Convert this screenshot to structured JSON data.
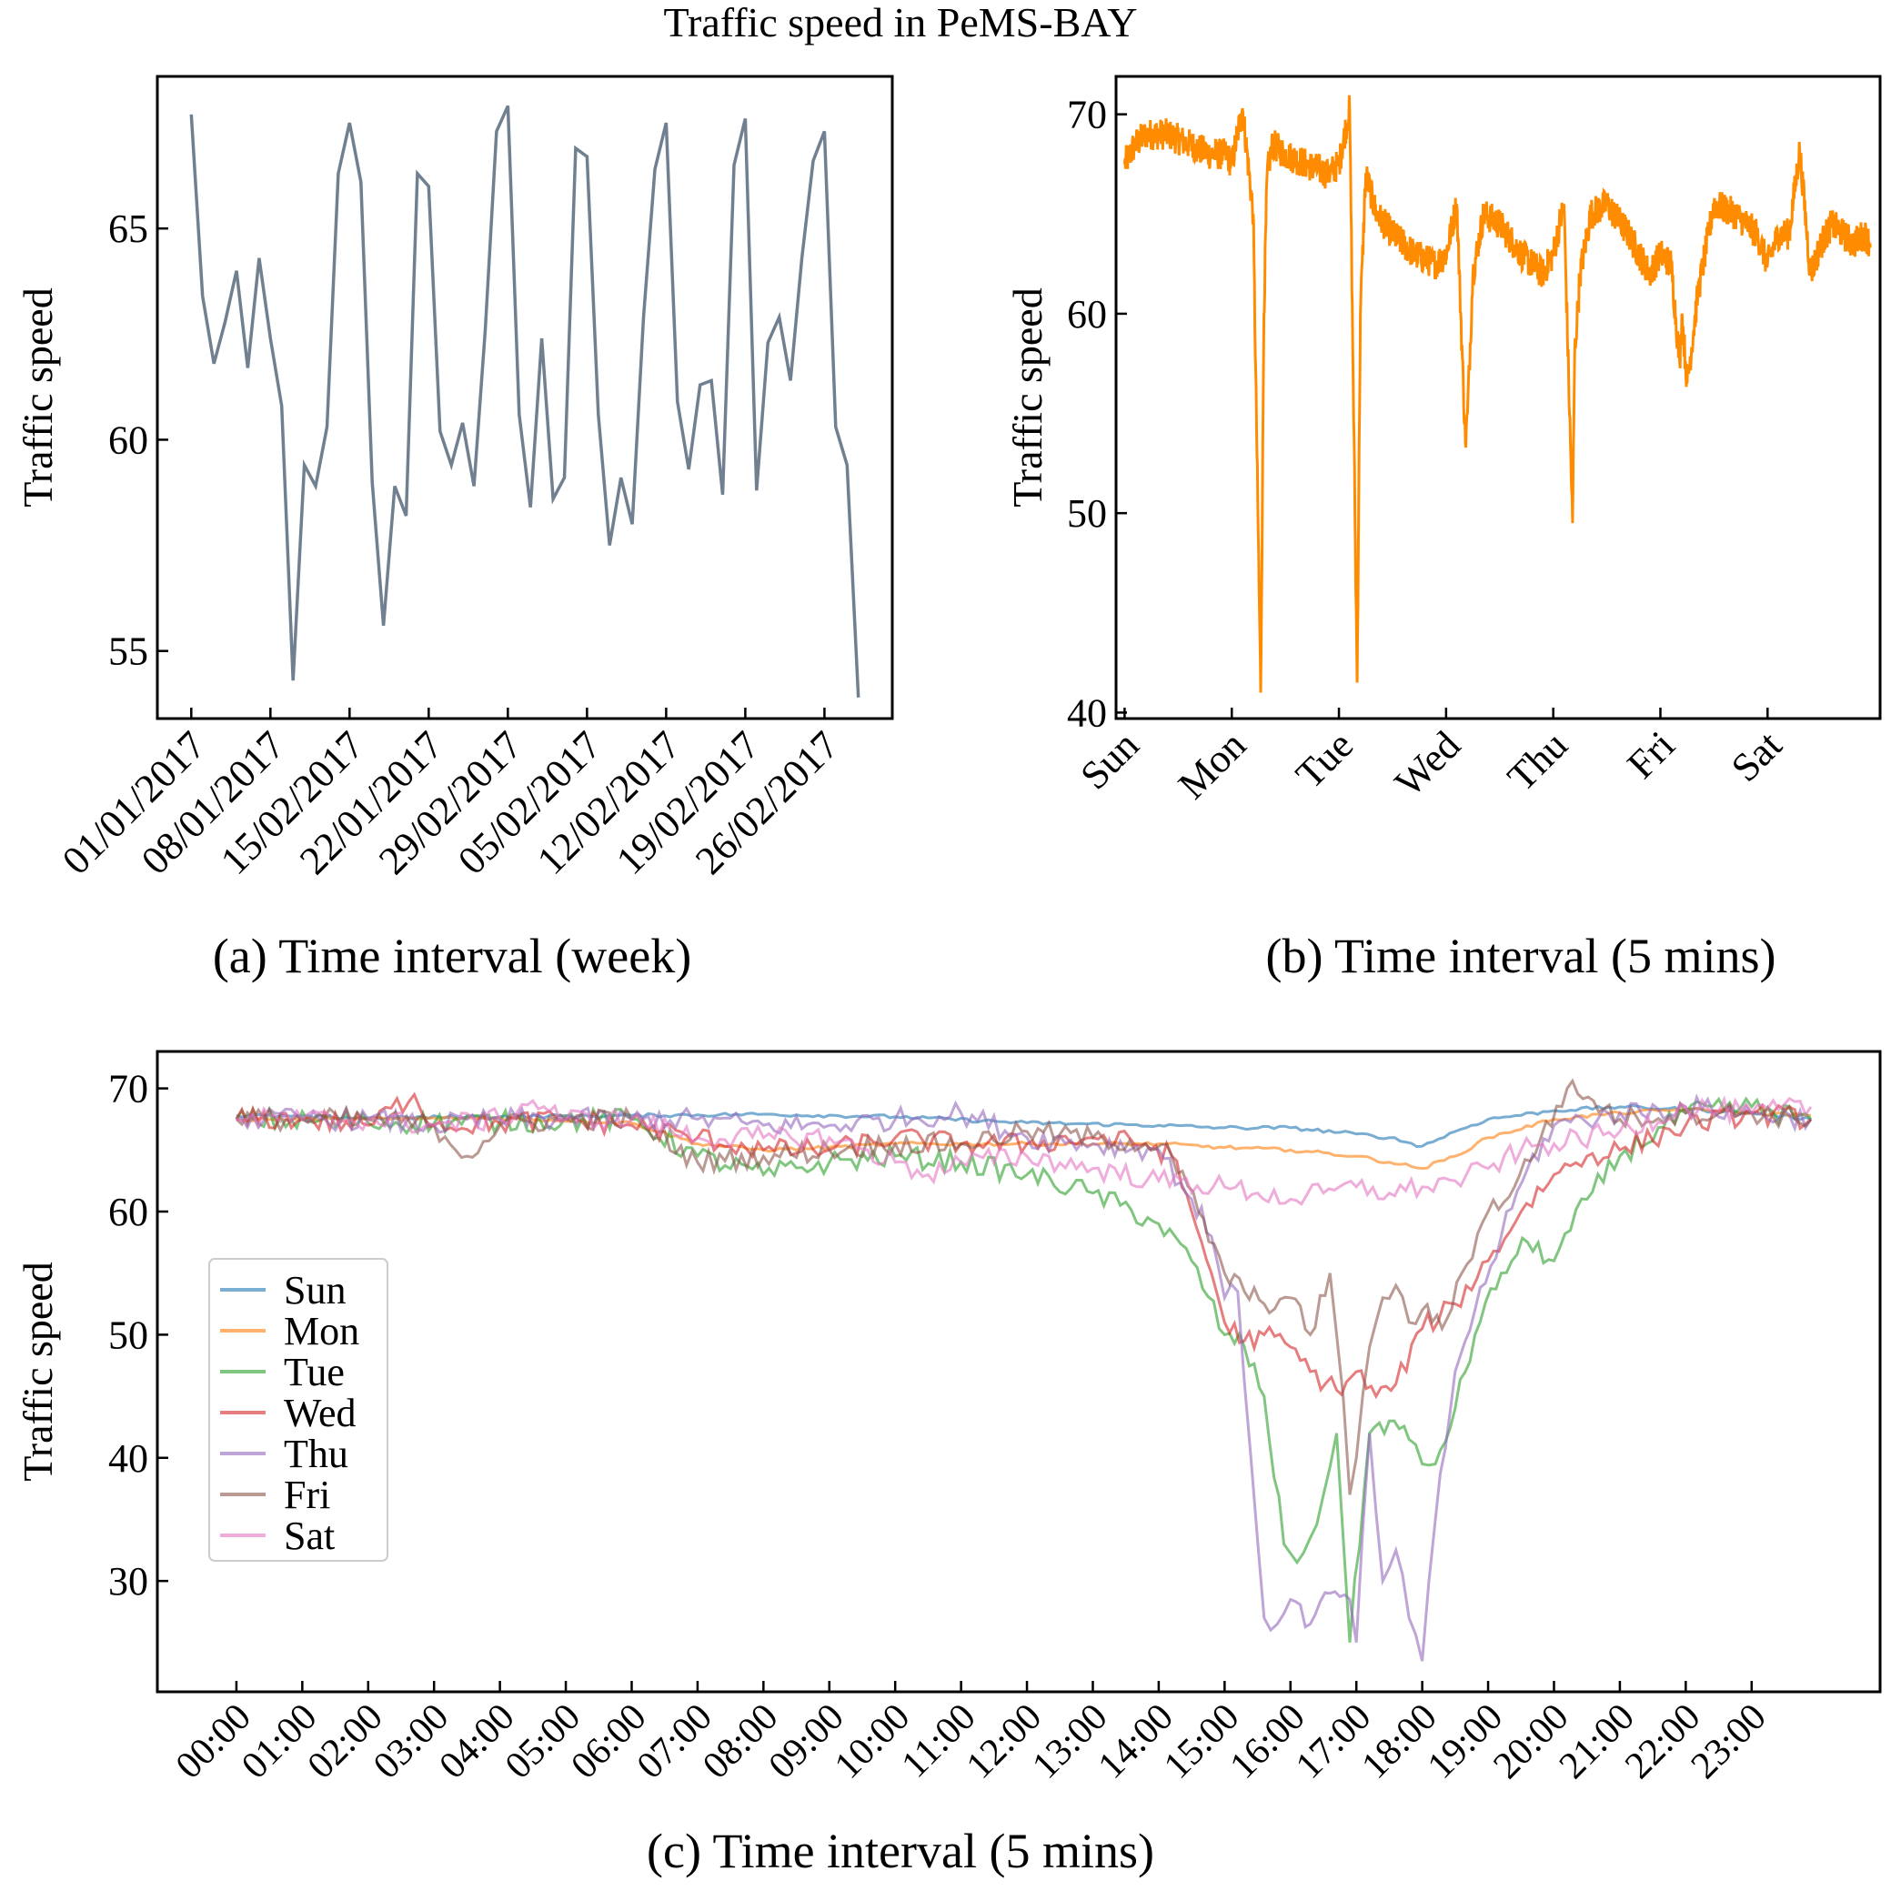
{
  "figure_title": "Traffic speed in PeMS-BAY",
  "chart_data": [
    {
      "id": "a",
      "type": "line",
      "title": "",
      "xlabel": "(a) Time interval (week)",
      "ylabel": "Traffic speed",
      "ylim": [
        53.4,
        68.6
      ],
      "yticks": [
        55,
        60,
        65
      ],
      "color": "#708090",
      "xtick_labels": [
        "01/01/2017",
        "08/01/2017",
        "15/02/2017",
        "22/01/2017",
        "29/02/2017",
        "05/02/2017",
        "12/02/2017",
        "19/02/2017",
        "26/02/2017"
      ],
      "xtick_positions": [
        0,
        7,
        14,
        21,
        28,
        35,
        42,
        49,
        56
      ],
      "xlim": [
        -3,
        62
      ],
      "x": [
        0,
        1,
        2,
        3,
        4,
        5,
        6,
        7,
        8,
        9,
        10,
        11,
        12,
        13,
        14,
        15,
        16,
        17,
        18,
        19,
        20,
        21,
        22,
        23,
        24,
        25,
        26,
        27,
        28,
        29,
        30,
        31,
        32,
        33,
        34,
        35,
        36,
        37,
        38,
        39,
        40,
        41,
        42,
        43,
        44,
        45,
        46,
        47,
        48,
        49,
        50,
        51,
        52,
        53,
        54,
        55,
        56,
        57,
        58,
        59
      ],
      "values": [
        67.7,
        63.4,
        61.8,
        62.8,
        64.0,
        61.7,
        64.3,
        62.4,
        60.8,
        54.3,
        59.4,
        58.9,
        60.3,
        66.3,
        67.5,
        66.1,
        59.0,
        55.6,
        58.9,
        58.2,
        66.3,
        66.0,
        60.2,
        59.4,
        60.4,
        58.9,
        62.6,
        67.3,
        67.9,
        60.6,
        58.4,
        62.4,
        58.6,
        59.1,
        66.9,
        66.7,
        60.6,
        57.5,
        59.1,
        58.0,
        62.9,
        66.4,
        67.5,
        60.9,
        59.3,
        61.3,
        61.4,
        58.7,
        66.5,
        67.6,
        58.8,
        62.3,
        62.9,
        61.4,
        64.3,
        66.6,
        67.3,
        60.3,
        59.4,
        53.9
      ]
    },
    {
      "id": "b",
      "type": "line",
      "title": "",
      "xlabel": "(b) Time interval (5 mins)",
      "ylabel": "Traffic speed",
      "ylim": [
        39.7,
        71.9
      ],
      "yticks": [
        40,
        50,
        60,
        70
      ],
      "color": "#ff8c00",
      "xtick_labels": [
        "Sun",
        "Mon",
        "Tue",
        "Wed",
        "Thu",
        "Fri",
        "Sat"
      ],
      "xtick_positions": [
        0,
        1,
        2,
        3,
        4,
        5,
        6
      ],
      "xlim": [
        -0.08,
        7.05
      ],
      "day_profiles": [
        {
          "x": [
            0,
            0.1,
            0.2,
            0.4,
            0.6,
            0.8,
            0.95,
            1.0,
            1.1,
            1.2,
            1.27,
            1.3,
            1.33,
            1.38,
            1.5,
            1.7,
            1.9,
            2.0
          ],
          "values": [
            67.5,
            68.5,
            69.0,
            69.0,
            68.5,
            68.0,
            68.0,
            67.5,
            70.3,
            65.0,
            41.0,
            60.0,
            67.0,
            68.5,
            68.0,
            67.5,
            67.0,
            67.5
          ]
        },
        {
          "x": [
            2.0,
            2.1,
            2.17,
            2.2,
            2.25,
            2.35,
            2.5,
            2.7,
            2.9,
            3.0
          ],
          "values": [
            67.5,
            70.3,
            41.5,
            60.0,
            67.0,
            65.0,
            64.0,
            63.0,
            62.5,
            63.0
          ]
        },
        {
          "x": [
            3.0,
            3.1,
            3.18,
            3.2,
            3.25,
            3.35,
            3.5,
            3.7,
            3.9,
            4.0
          ],
          "values": [
            63.0,
            65.5,
            53.5,
            55.0,
            62.0,
            65.0,
            64.5,
            63.0,
            62.0,
            63.0
          ]
        },
        {
          "x": [
            4.0,
            4.1,
            4.18,
            4.2,
            4.25,
            4.35,
            4.5,
            4.7,
            4.9,
            5.0
          ],
          "values": [
            63.0,
            65.5,
            49.5,
            58.0,
            62.0,
            65.0,
            65.5,
            64.0,
            62.0,
            63.0
          ]
        },
        {
          "x": [
            5.0,
            5.1,
            5.18,
            5.2,
            5.25,
            5.35,
            5.5,
            5.7,
            5.9,
            6.0
          ],
          "values": [
            63.0,
            62.5,
            57.5,
            60.0,
            56.5,
            61.0,
            65.5,
            65.0,
            64.0,
            62.5
          ]
        },
        {
          "x": [
            6.0,
            6.1,
            6.2,
            6.3,
            6.4,
            6.5,
            6.6,
            6.7,
            6.8,
            6.9,
            6.96
          ],
          "values": [
            62.5,
            64.0,
            64.0,
            68.2,
            62.0,
            63.5,
            64.5,
            64.0,
            63.5,
            64.0,
            63.5
          ]
        }
      ]
    },
    {
      "id": "c",
      "type": "line",
      "title": "",
      "xlabel": "(c) Time interval (5 mins)",
      "ylabel": "Traffic speed",
      "ylim": [
        21,
        73
      ],
      "yticks": [
        30,
        40,
        50,
        60,
        70
      ],
      "xtick_labels": [
        "00:00",
        "01:00",
        "02:00",
        "03:00",
        "04:00",
        "05:00",
        "06:00",
        "07:00",
        "08:00",
        "09:00",
        "10:00",
        "11:00",
        "12:00",
        "13:00",
        "14:00",
        "15:00",
        "16:00",
        "17:00",
        "18:00",
        "19:00",
        "20:00",
        "21:00",
        "22:00",
        "23:00"
      ],
      "xlim": [
        -1.2,
        24.95
      ],
      "legend_position": "center-left",
      "series": [
        {
          "name": "Sun",
          "color": "#1f77b4",
          "x": [
            0,
            2,
            4,
            6,
            8,
            10,
            12,
            14,
            15,
            16,
            17,
            17.5,
            18,
            18.5,
            19,
            20,
            21,
            22,
            23,
            23.9
          ],
          "values": [
            67.8,
            67.6,
            67.7,
            67.8,
            67.9,
            67.7,
            67.2,
            67.0,
            66.8,
            66.8,
            66.3,
            66.0,
            65.3,
            66.5,
            67.5,
            68.2,
            68.5,
            68.3,
            68.0,
            67.5
          ]
        },
        {
          "name": "Mon",
          "color": "#ff7f0e",
          "x": [
            0,
            2,
            4,
            6,
            7,
            8,
            9,
            10,
            12,
            14,
            15,
            16,
            17,
            17.5,
            18,
            18.5,
            19,
            20,
            21,
            22,
            23,
            23.9
          ],
          "values": [
            67.5,
            67.5,
            67.6,
            67.2,
            65.5,
            65.0,
            65.2,
            65.5,
            65.5,
            65.5,
            65.2,
            65.0,
            64.5,
            64.0,
            63.5,
            64.5,
            66.0,
            67.5,
            68.0,
            68.3,
            68.0,
            67.8
          ]
        },
        {
          "name": "Tue",
          "color": "#2ca02c",
          "x": [
            0,
            2,
            4,
            6,
            7,
            8,
            9,
            10,
            11,
            12,
            13,
            14,
            14.5,
            15,
            15.3,
            15.6,
            15.9,
            16.1,
            16.3,
            16.5,
            16.7,
            16.9,
            17.2,
            17.5,
            17.8,
            18.0,
            18.2,
            18.5,
            18.8,
            19.2,
            19.6,
            20.0,
            20.5,
            21,
            22,
            23,
            23.9
          ],
          "values": [
            67.5,
            67.2,
            67.3,
            67.5,
            64.5,
            63.0,
            64.0,
            64.5,
            64.0,
            63.0,
            61.5,
            59.0,
            56.0,
            50.0,
            49.0,
            45.0,
            33.0,
            31.5,
            33.5,
            37.0,
            42.0,
            25.0,
            42.0,
            43.0,
            41.5,
            39.5,
            39.5,
            44.0,
            50.0,
            55.0,
            57.5,
            56.0,
            61.0,
            64.5,
            68.0,
            68.5,
            67.5
          ]
        },
        {
          "name": "Wed",
          "color": "#d62728",
          "x": [
            0,
            1,
            2,
            2.7,
            3,
            4,
            5,
            6,
            7,
            8,
            9,
            10,
            11,
            12,
            13,
            13.8,
            14.2,
            14.5,
            14.8,
            15.0,
            15.3,
            15.6,
            16.0,
            16.3,
            16.7,
            17.0,
            17.3,
            17.6,
            18.0,
            18.5,
            19.0,
            19.5,
            20,
            20.5,
            21,
            22,
            23,
            23.9
          ],
          "values": [
            67.5,
            67.5,
            67.0,
            69.5,
            67.0,
            67.2,
            67.5,
            67.0,
            66.0,
            65.0,
            65.0,
            66.0,
            65.5,
            65.5,
            66.0,
            65.5,
            64.5,
            60.0,
            55.0,
            51.0,
            49.5,
            50.0,
            49.0,
            47.0,
            45.5,
            47.0,
            45.0,
            46.0,
            50.5,
            52.5,
            56.0,
            60.0,
            63.0,
            64.5,
            65.0,
            67.0,
            68.0,
            67.5
          ]
        },
        {
          "name": "Thu",
          "color": "#9467bd",
          "x": [
            0,
            1,
            2,
            3,
            4,
            5,
            6,
            7,
            8,
            9,
            10,
            11,
            12,
            13,
            14,
            14.5,
            14.8,
            15.0,
            15.2,
            15.4,
            15.6,
            15.8,
            16.0,
            16.3,
            16.6,
            16.9,
            17.0,
            17.2,
            17.4,
            17.6,
            17.8,
            18.0,
            18.2,
            18.5,
            18.8,
            19.2,
            19.6,
            20,
            21,
            22,
            23,
            23.9
          ],
          "values": [
            67.5,
            67.5,
            67.5,
            67.0,
            67.5,
            67.5,
            67.5,
            67.5,
            67.0,
            67.0,
            67.5,
            68.0,
            66.0,
            65.5,
            65.0,
            61.0,
            58.0,
            53.0,
            53.5,
            40.0,
            27.0,
            26.5,
            28.5,
            26.5,
            29.0,
            28.5,
            25.0,
            42.0,
            30.0,
            32.5,
            27.0,
            23.5,
            35.0,
            47.0,
            52.0,
            58.0,
            63.5,
            67.0,
            68.0,
            68.5,
            68.0,
            67.5
          ]
        },
        {
          "name": "Fri",
          "color": "#8c564b",
          "x": [
            0,
            1,
            2,
            3,
            3.5,
            4,
            5,
            6,
            7,
            8,
            9,
            10,
            11,
            12,
            13,
            13.8,
            14.2,
            14.6,
            15.0,
            15.3,
            15.6,
            16.0,
            16.3,
            16.6,
            16.8,
            16.9,
            17.0,
            17.2,
            17.4,
            17.6,
            17.8,
            18.0,
            18.3,
            18.6,
            19.0,
            19.4,
            19.8,
            20.2,
            20.6,
            21,
            22,
            23,
            23.9
          ],
          "values": [
            67.5,
            67.5,
            67.5,
            67.0,
            64.5,
            67.0,
            67.5,
            67.5,
            64.0,
            64.5,
            65.0,
            65.5,
            65.5,
            66.5,
            66.0,
            65.5,
            64.5,
            60.0,
            55.0,
            53.5,
            52.5,
            53.0,
            50.0,
            55.0,
            45.0,
            37.0,
            40.0,
            49.0,
            53.0,
            54.0,
            51.0,
            52.0,
            50.5,
            55.0,
            60.0,
            62.0,
            66.0,
            70.0,
            69.0,
            67.5,
            68.0,
            68.0,
            67.5
          ]
        },
        {
          "name": "Sat",
          "color": "#e377c2",
          "x": [
            0,
            1,
            2,
            3,
            4,
            4.5,
            5,
            6,
            7,
            8,
            9,
            10,
            10.5,
            11,
            12,
            13,
            14,
            15,
            15.5,
            16,
            16.5,
            17,
            17.5,
            18,
            18.5,
            19,
            19.5,
            20,
            21,
            22,
            23,
            23.9
          ],
          "values": [
            67.5,
            67.5,
            67.5,
            67.0,
            67.5,
            69.0,
            67.5,
            67.5,
            66.0,
            66.0,
            66.0,
            64.0,
            63.0,
            64.0,
            64.5,
            63.5,
            62.5,
            62.0,
            61.5,
            61.0,
            61.5,
            62.0,
            61.5,
            62.0,
            62.5,
            63.5,
            65.0,
            65.5,
            66.5,
            68.5,
            68.0,
            68.5
          ]
        }
      ]
    }
  ]
}
